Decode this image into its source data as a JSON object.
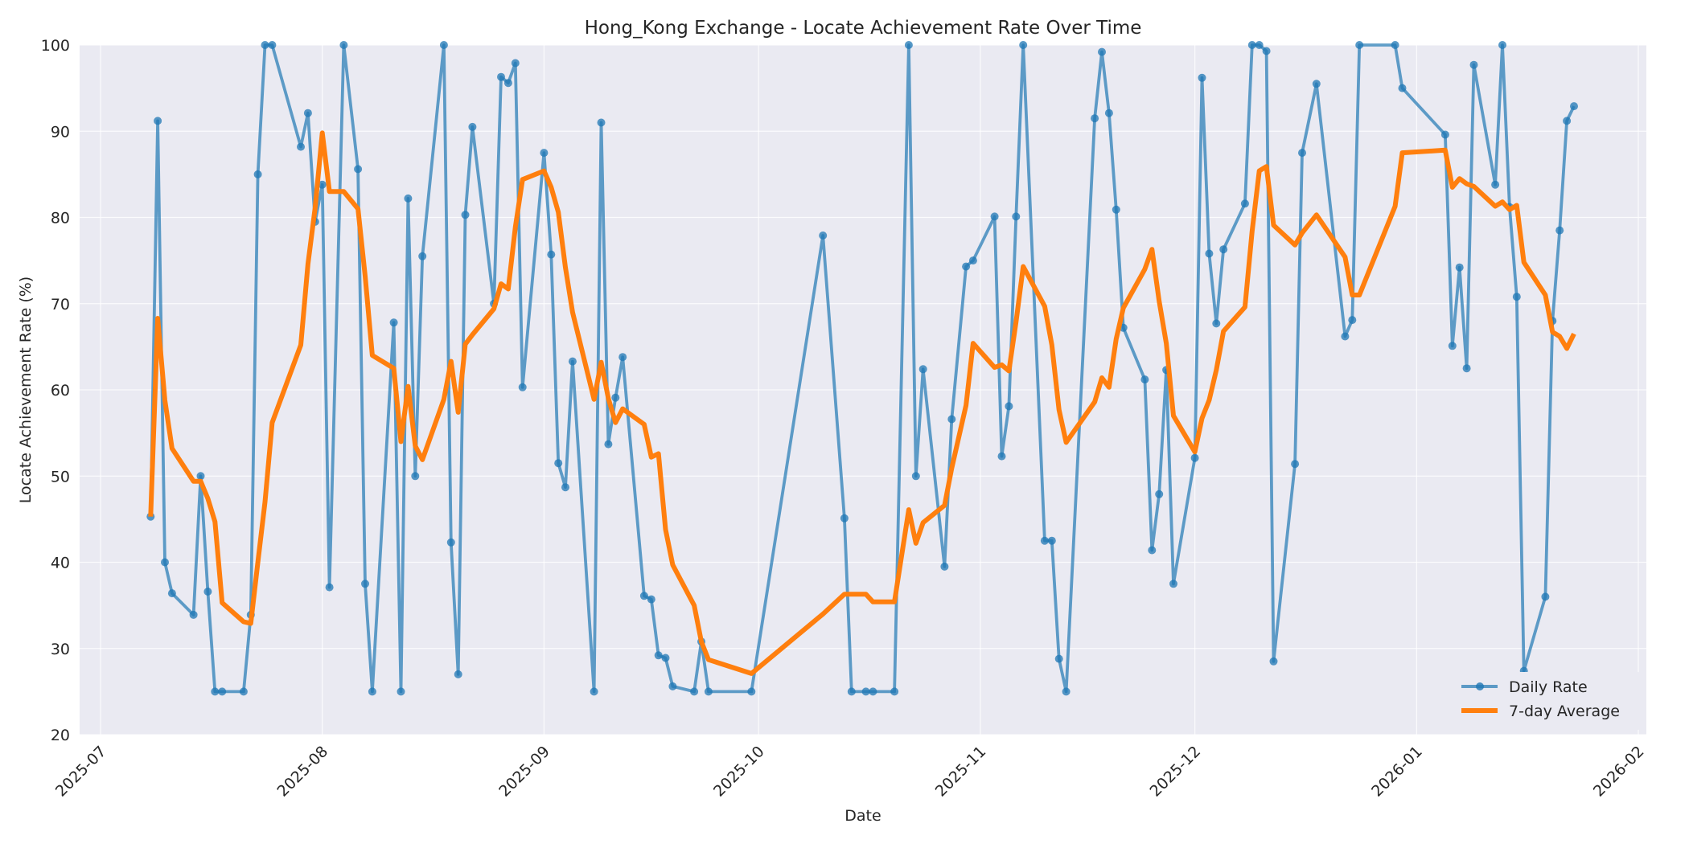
{
  "chart_data": {
    "type": "line",
    "title": "Hong_Kong Exchange - Locate Achievement Rate Over Time",
    "xlabel": "Date",
    "ylabel": "Locate Achievement Rate (%)",
    "ylim": [
      20,
      100
    ],
    "xlim": [
      "2025-06-28",
      "2026-02-02"
    ],
    "yticks": [
      20,
      30,
      40,
      50,
      60,
      70,
      80,
      90,
      100
    ],
    "xticks": [
      "2025-07",
      "2025-08",
      "2025-09",
      "2025-10",
      "2025-11",
      "2025-12",
      "2026-01",
      "2026-02"
    ],
    "grid": true,
    "legend_position": "lower right",
    "colors": {
      "daily": "#1f77b4",
      "avg": "#ff7f0e",
      "plot_bg": "#eaeaf2",
      "grid": "#ffffff"
    },
    "series": [
      {
        "name": "Daily Rate",
        "marker": "circle",
        "points": [
          [
            "2025-07-08",
            45.3
          ],
          [
            "2025-07-09",
            91.2
          ],
          [
            "2025-07-10",
            40.0
          ],
          [
            "2025-07-11",
            36.4
          ],
          [
            "2025-07-14",
            33.9
          ],
          [
            "2025-07-15",
            50.0
          ],
          [
            "2025-07-16",
            36.6
          ],
          [
            "2025-07-17",
            25.0
          ],
          [
            "2025-07-18",
            25.0
          ],
          [
            "2025-07-21",
            25.0
          ],
          [
            "2025-07-22",
            33.9
          ],
          [
            "2025-07-23",
            85.0
          ],
          [
            "2025-07-24",
            100.0
          ],
          [
            "2025-07-25",
            100.0
          ],
          [
            "2025-07-29",
            88.2
          ],
          [
            "2025-07-30",
            92.1
          ],
          [
            "2025-07-31",
            79.5
          ],
          [
            "2025-08-01",
            83.8
          ],
          [
            "2025-08-02",
            37.1
          ],
          [
            "2025-08-04",
            100.0
          ],
          [
            "2025-08-06",
            85.6
          ],
          [
            "2025-08-07",
            37.5
          ],
          [
            "2025-08-08",
            25.0
          ],
          [
            "2025-08-11",
            67.8
          ],
          [
            "2025-08-12",
            25.0
          ],
          [
            "2025-08-13",
            82.2
          ],
          [
            "2025-08-14",
            50.0
          ],
          [
            "2025-08-15",
            75.5
          ],
          [
            "2025-08-18",
            100.0
          ],
          [
            "2025-08-19",
            42.3
          ],
          [
            "2025-08-20",
            27.0
          ],
          [
            "2025-08-21",
            80.3
          ],
          [
            "2025-08-22",
            90.5
          ],
          [
            "2025-08-25",
            70.0
          ],
          [
            "2025-08-26",
            96.3
          ],
          [
            "2025-08-27",
            95.6
          ],
          [
            "2025-08-28",
            97.9
          ],
          [
            "2025-08-29",
            60.3
          ],
          [
            "2025-09-01",
            87.5
          ],
          [
            "2025-09-02",
            75.7
          ],
          [
            "2025-09-03",
            51.5
          ],
          [
            "2025-09-04",
            48.7
          ],
          [
            "2025-09-05",
            63.3
          ],
          [
            "2025-09-08",
            25.0
          ],
          [
            "2025-09-09",
            91.0
          ],
          [
            "2025-09-10",
            53.7
          ],
          [
            "2025-09-11",
            59.1
          ],
          [
            "2025-09-12",
            63.8
          ],
          [
            "2025-09-15",
            36.1
          ],
          [
            "2025-09-16",
            35.7
          ],
          [
            "2025-09-17",
            29.2
          ],
          [
            "2025-09-18",
            28.9
          ],
          [
            "2025-09-19",
            25.6
          ],
          [
            "2025-09-22",
            25.0
          ],
          [
            "2025-09-23",
            30.8
          ],
          [
            "2025-09-24",
            25.0
          ],
          [
            "2025-09-30",
            25.0
          ],
          [
            "2025-10-10",
            77.9
          ],
          [
            "2025-10-13",
            45.1
          ],
          [
            "2025-10-14",
            25.0
          ],
          [
            "2025-10-16",
            25.0
          ],
          [
            "2025-10-17",
            25.0
          ],
          [
            "2025-10-20",
            25.0
          ],
          [
            "2025-10-22",
            100.0
          ],
          [
            "2025-10-23",
            50.0
          ],
          [
            "2025-10-24",
            62.4
          ],
          [
            "2025-10-27",
            39.5
          ],
          [
            "2025-10-28",
            56.6
          ],
          [
            "2025-10-30",
            74.3
          ],
          [
            "2025-10-31",
            75.0
          ],
          [
            "2025-11-03",
            80.1
          ],
          [
            "2025-11-04",
            52.3
          ],
          [
            "2025-11-05",
            58.1
          ],
          [
            "2025-11-06",
            80.1
          ],
          [
            "2025-11-07",
            100.0
          ],
          [
            "2025-11-10",
            42.5
          ],
          [
            "2025-11-11",
            42.5
          ],
          [
            "2025-11-12",
            28.8
          ],
          [
            "2025-11-13",
            25.0
          ],
          [
            "2025-11-17",
            91.5
          ],
          [
            "2025-11-18",
            99.2
          ],
          [
            "2025-11-19",
            92.1
          ],
          [
            "2025-11-20",
            80.9
          ],
          [
            "2025-11-21",
            67.2
          ],
          [
            "2025-11-24",
            61.2
          ],
          [
            "2025-11-25",
            41.4
          ],
          [
            "2025-11-26",
            47.9
          ],
          [
            "2025-11-27",
            62.3
          ],
          [
            "2025-11-28",
            37.5
          ],
          [
            "2025-12-01",
            52.1
          ],
          [
            "2025-12-02",
            96.2
          ],
          [
            "2025-12-03",
            75.8
          ],
          [
            "2025-12-04",
            67.7
          ],
          [
            "2025-12-05",
            76.3
          ],
          [
            "2025-12-08",
            81.6
          ],
          [
            "2025-12-09",
            100.0
          ],
          [
            "2025-12-10",
            100.0
          ],
          [
            "2025-12-11",
            99.3
          ],
          [
            "2025-12-12",
            28.5
          ],
          [
            "2025-12-15",
            51.4
          ],
          [
            "2025-12-16",
            87.5
          ],
          [
            "2025-12-18",
            95.5
          ],
          [
            "2025-12-22",
            66.2
          ],
          [
            "2025-12-23",
            68.1
          ],
          [
            "2025-12-24",
            100.0
          ],
          [
            "2025-12-29",
            100.0
          ],
          [
            "2025-12-30",
            95.0
          ],
          [
            "2026-01-05",
            89.6
          ],
          [
            "2026-01-06",
            65.1
          ],
          [
            "2026-01-07",
            74.2
          ],
          [
            "2026-01-08",
            62.5
          ],
          [
            "2026-01-09",
            97.7
          ],
          [
            "2026-01-12",
            83.8
          ],
          [
            "2026-01-13",
            100.0
          ],
          [
            "2026-01-14",
            81.2
          ],
          [
            "2026-01-15",
            70.8
          ],
          [
            "2026-01-16",
            27.4
          ],
          [
            "2026-01-19",
            36.0
          ],
          [
            "2026-01-20",
            68.0
          ],
          [
            "2026-01-21",
            78.5
          ],
          [
            "2026-01-22",
            91.2
          ],
          [
            "2026-01-23",
            92.9
          ]
        ]
      },
      {
        "name": "7-day Average",
        "marker": "none",
        "points": [
          [
            "2025-07-08",
            45.3
          ],
          [
            "2025-07-09",
            68.3
          ],
          [
            "2025-07-10",
            58.8
          ],
          [
            "2025-07-11",
            53.2
          ],
          [
            "2025-07-14",
            49.4
          ],
          [
            "2025-07-15",
            49.4
          ],
          [
            "2025-07-16",
            47.4
          ],
          [
            "2025-07-17",
            44.7
          ],
          [
            "2025-07-18",
            35.3
          ],
          [
            "2025-07-21",
            33.1
          ],
          [
            "2025-07-22",
            32.9
          ],
          [
            "2025-07-23",
            40.0
          ],
          [
            "2025-07-24",
            47.0
          ],
          [
            "2025-07-25",
            56.2
          ],
          [
            "2025-07-29",
            65.2
          ],
          [
            "2025-07-30",
            74.6
          ],
          [
            "2025-07-31",
            81.1
          ],
          [
            "2025-08-01",
            89.8
          ],
          [
            "2025-08-02",
            83.0
          ],
          [
            "2025-08-04",
            83.0
          ],
          [
            "2025-08-06",
            81.0
          ],
          [
            "2025-08-07",
            73.2
          ],
          [
            "2025-08-08",
            64.0
          ],
          [
            "2025-08-11",
            62.5
          ],
          [
            "2025-08-12",
            54.0
          ],
          [
            "2025-08-13",
            60.4
          ],
          [
            "2025-08-14",
            53.5
          ],
          [
            "2025-08-15",
            51.9
          ],
          [
            "2025-08-18",
            58.9
          ],
          [
            "2025-08-19",
            63.3
          ],
          [
            "2025-08-20",
            57.4
          ],
          [
            "2025-08-21",
            65.3
          ],
          [
            "2025-08-22",
            66.4
          ],
          [
            "2025-08-25",
            69.4
          ],
          [
            "2025-08-26",
            72.3
          ],
          [
            "2025-08-27",
            71.7
          ],
          [
            "2025-08-28",
            78.9
          ],
          [
            "2025-08-29",
            84.4
          ],
          [
            "2025-09-01",
            85.4
          ],
          [
            "2025-09-02",
            83.5
          ],
          [
            "2025-09-03",
            80.6
          ],
          [
            "2025-09-04",
            74.2
          ],
          [
            "2025-09-05",
            69.0
          ],
          [
            "2025-09-08",
            58.9
          ],
          [
            "2025-09-09",
            63.2
          ],
          [
            "2025-09-10",
            59.0
          ],
          [
            "2025-09-11",
            56.2
          ],
          [
            "2025-09-12",
            57.8
          ],
          [
            "2025-09-15",
            56.0
          ],
          [
            "2025-09-16",
            52.2
          ],
          [
            "2025-09-17",
            52.6
          ],
          [
            "2025-09-18",
            43.8
          ],
          [
            "2025-09-19",
            39.7
          ],
          [
            "2025-09-22",
            35.0
          ],
          [
            "2025-09-23",
            30.8
          ],
          [
            "2025-09-24",
            28.7
          ],
          [
            "2025-09-30",
            27.1
          ],
          [
            "2025-10-10",
            34.0
          ],
          [
            "2025-10-13",
            36.3
          ],
          [
            "2025-10-14",
            36.3
          ],
          [
            "2025-10-16",
            36.3
          ],
          [
            "2025-10-17",
            35.4
          ],
          [
            "2025-10-20",
            35.4
          ],
          [
            "2025-10-22",
            46.1
          ],
          [
            "2025-10-23",
            42.2
          ],
          [
            "2025-10-24",
            44.6
          ],
          [
            "2025-10-27",
            46.6
          ],
          [
            "2025-10-28",
            50.9
          ],
          [
            "2025-10-30",
            58.2
          ],
          [
            "2025-10-31",
            65.4
          ],
          [
            "2025-11-03",
            62.6
          ],
          [
            "2025-11-04",
            62.9
          ],
          [
            "2025-11-05",
            62.2
          ],
          [
            "2025-11-06",
            67.9
          ],
          [
            "2025-11-07",
            74.3
          ],
          [
            "2025-11-10",
            69.7
          ],
          [
            "2025-11-11",
            65.2
          ],
          [
            "2025-11-12",
            57.7
          ],
          [
            "2025-11-13",
            53.9
          ],
          [
            "2025-11-17",
            58.6
          ],
          [
            "2025-11-18",
            61.4
          ],
          [
            "2025-11-19",
            60.3
          ],
          [
            "2025-11-20",
            65.9
          ],
          [
            "2025-11-21",
            69.5
          ],
          [
            "2025-11-24",
            74.0
          ],
          [
            "2025-11-25",
            76.3
          ],
          [
            "2025-11-26",
            70.3
          ],
          [
            "2025-11-27",
            65.4
          ],
          [
            "2025-11-28",
            57.0
          ],
          [
            "2025-12-01",
            52.8
          ],
          [
            "2025-12-02",
            56.7
          ],
          [
            "2025-12-03",
            58.8
          ],
          [
            "2025-12-04",
            62.3
          ],
          [
            "2025-12-05",
            66.8
          ],
          [
            "2025-12-08",
            69.6
          ],
          [
            "2025-12-09",
            78.4
          ],
          [
            "2025-12-10",
            85.4
          ],
          [
            "2025-12-11",
            85.9
          ],
          [
            "2025-12-12",
            79.1
          ],
          [
            "2025-12-15",
            76.8
          ],
          [
            "2025-12-16",
            78.2
          ],
          [
            "2025-12-18",
            80.3
          ],
          [
            "2025-12-22",
            75.4
          ],
          [
            "2025-12-23",
            71.0
          ],
          [
            "2025-12-24",
            71.0
          ],
          [
            "2025-12-29",
            81.3
          ],
          [
            "2025-12-30",
            87.5
          ],
          [
            "2026-01-05",
            87.8
          ],
          [
            "2026-01-06",
            83.5
          ],
          [
            "2026-01-07",
            84.5
          ],
          [
            "2026-01-08",
            83.9
          ],
          [
            "2026-01-09",
            83.6
          ],
          [
            "2026-01-12",
            81.3
          ],
          [
            "2026-01-13",
            81.8
          ],
          [
            "2026-01-14",
            80.9
          ],
          [
            "2026-01-15",
            81.4
          ],
          [
            "2026-01-16",
            74.8
          ],
          [
            "2026-01-19",
            71.0
          ],
          [
            "2026-01-20",
            66.7
          ],
          [
            "2026-01-21",
            66.2
          ],
          [
            "2026-01-22",
            64.8
          ],
          [
            "2026-01-23",
            66.5
          ]
        ]
      }
    ]
  }
}
